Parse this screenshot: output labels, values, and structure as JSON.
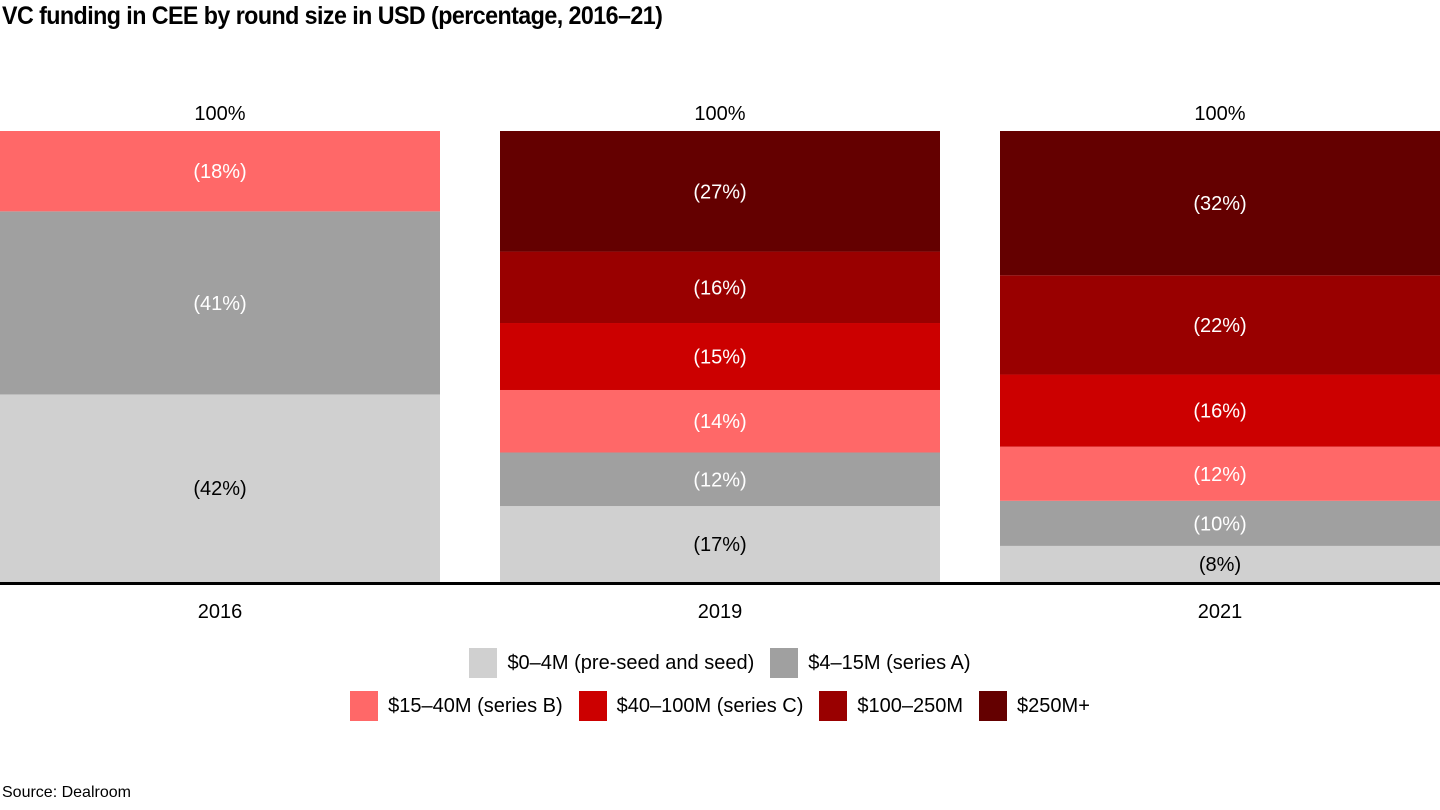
{
  "title": "VC funding in CEE by round size in USD (percentage, 2016–21)",
  "source": "Source: Dealroom",
  "chart_data": {
    "type": "bar",
    "stacked": true,
    "title": "VC funding in CEE by round size in USD (percentage, 2016–21)",
    "xlabel": "",
    "ylabel": "",
    "ylim": [
      0,
      100
    ],
    "grid": false,
    "categories": [
      "2016",
      "2019",
      "2021"
    ],
    "totals": [
      "100%",
      "100%",
      "100%"
    ],
    "series": [
      {
        "name": "$0–4M (pre-seed and seed)",
        "color": "#d0d0d0",
        "label_color": "#000000",
        "values": [
          42,
          17,
          8
        ],
        "labels": [
          "(42%)",
          "(17%)",
          "(8%)"
        ]
      },
      {
        "name": "$4–15M (series A)",
        "color": "#a0a0a0",
        "label_color": "#ffffff",
        "values": [
          41,
          12,
          10
        ],
        "labels": [
          "(41%)",
          "(12%)",
          "(10%)"
        ]
      },
      {
        "name": "$15–40M (series B)",
        "color": "#ff6868",
        "label_color": "#ffffff",
        "values": [
          18,
          14,
          12
        ],
        "labels": [
          "(18%)",
          "(14%)",
          "(12%)"
        ]
      },
      {
        "name": "$40–100M (series C)",
        "color": "#cc0000",
        "label_color": "#ffffff",
        "values": [
          0,
          15,
          16
        ],
        "labels": [
          "",
          "(15%)",
          "(16%)"
        ]
      },
      {
        "name": "$100–250M",
        "color": "#990000",
        "label_color": "#ffffff",
        "values": [
          0,
          16,
          22
        ],
        "labels": [
          "",
          "(16%)",
          "(22%)"
        ]
      },
      {
        "name": "$250M+",
        "color": "#640000",
        "label_color": "#ffffff",
        "values": [
          0,
          27,
          32
        ],
        "labels": [
          "",
          "(27%)",
          "(32%)"
        ]
      }
    ],
    "legend": {
      "placement": "bottom",
      "rows": [
        [
          0,
          1
        ],
        [
          2,
          3,
          4,
          5
        ]
      ]
    }
  }
}
